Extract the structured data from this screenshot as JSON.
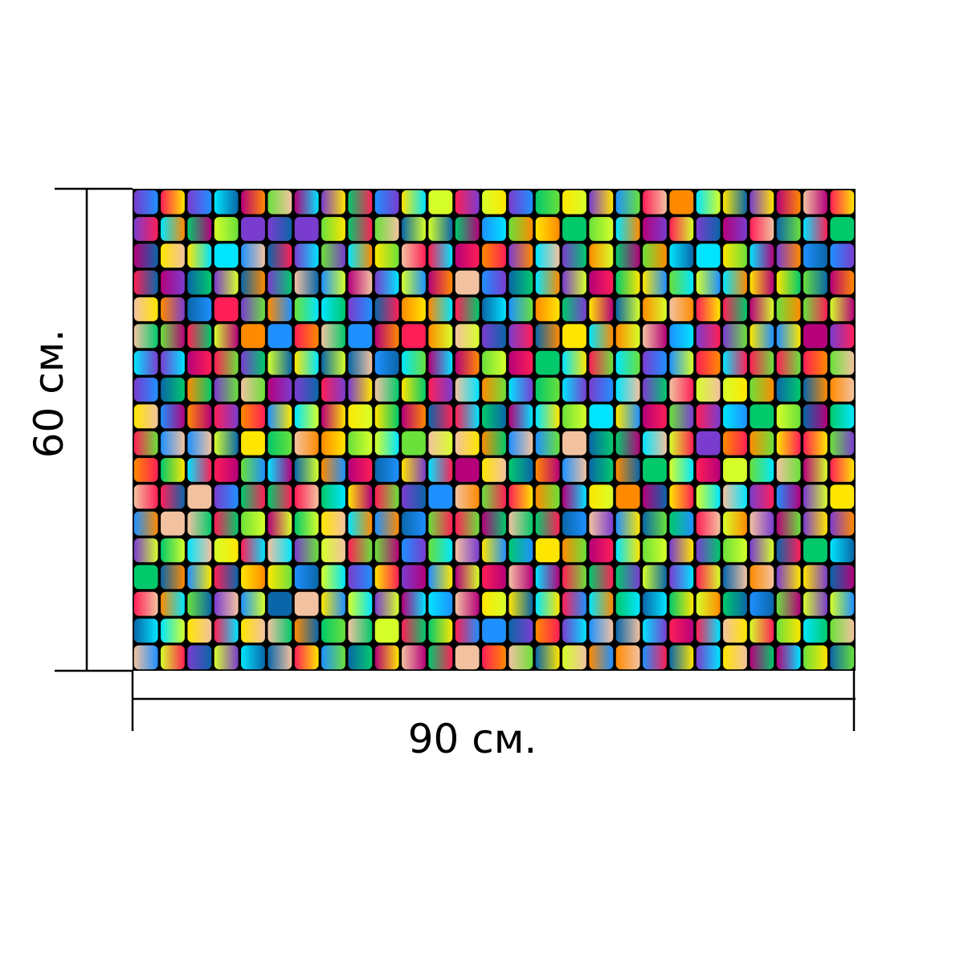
{
  "dimensions": {
    "height_label": "60 см.",
    "width_label": "90 см."
  },
  "pattern": {
    "description_colors": [
      "#00e5ff",
      "#ff1e56",
      "#ffe600",
      "#6ae03a",
      "#ff8a00",
      "#7a3ccf",
      "#1e90ff",
      "#b5007a",
      "#00c96b",
      "#f2c2a0",
      "#0a66a8",
      "#d6ff2a"
    ],
    "background": "#000000"
  }
}
